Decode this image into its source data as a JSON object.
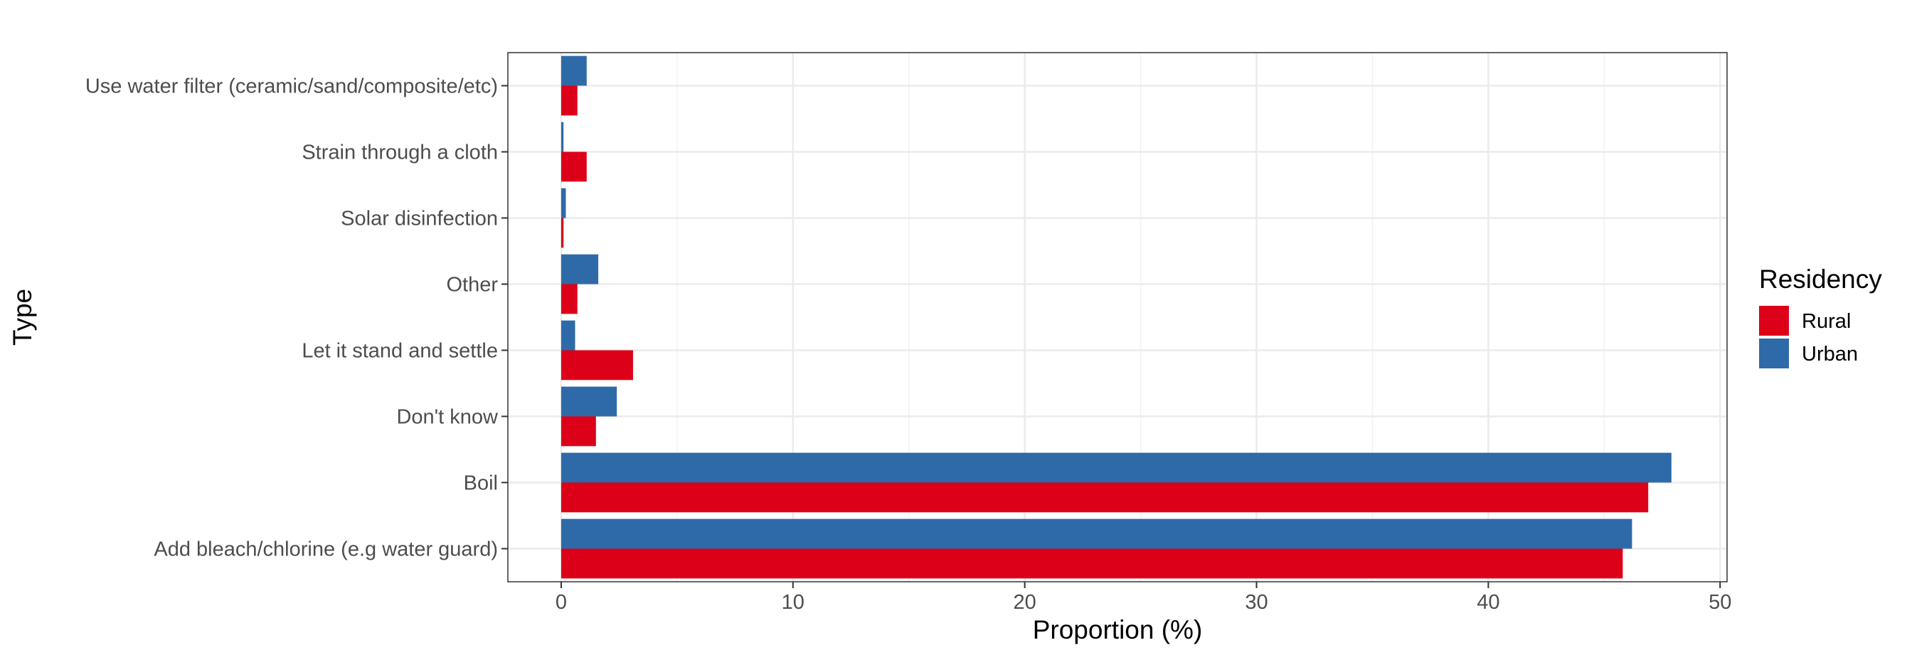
{
  "chart_data": {
    "type": "bar",
    "orientation": "horizontal",
    "title": "",
    "xlabel": "Proportion (%)",
    "ylabel": "Type",
    "xlim": [
      -2.3,
      50.3
    ],
    "xticks": [
      0,
      10,
      20,
      30,
      40,
      50
    ],
    "grid": true,
    "legend_title": "Residency",
    "legend_position": "right",
    "categories": [
      "Add bleach/chlorine (e.g water guard)",
      "Boil",
      "Don't know",
      "Let it stand and settle",
      "Other",
      "Solar disinfection",
      "Strain through a cloth",
      "Use water filter (ceramic/sand/composite/etc)"
    ],
    "series": [
      {
        "name": "Rural",
        "color": "#dc0019",
        "values": [
          45.8,
          46.9,
          1.5,
          3.1,
          0.7,
          0.1,
          1.1,
          0.7
        ]
      },
      {
        "name": "Urban",
        "color": "#2e6aa8",
        "values": [
          46.2,
          47.9,
          2.4,
          0.6,
          1.6,
          0.2,
          0.1,
          1.1
        ]
      }
    ]
  }
}
